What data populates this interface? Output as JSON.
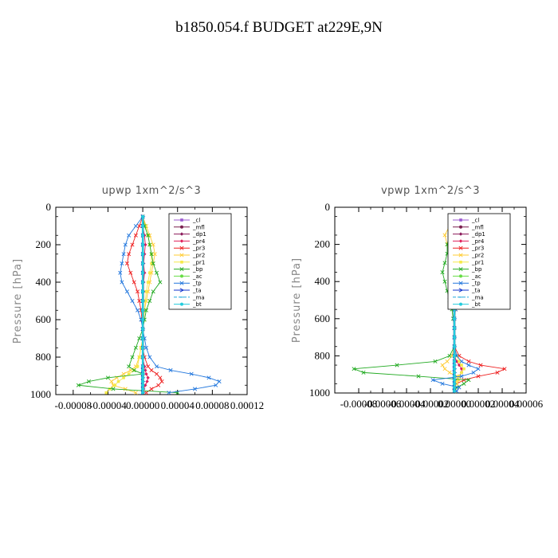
{
  "figure_title": "b1850.054.f  BUDGET at229E,9N",
  "chart_data": [
    {
      "type": "line",
      "title": "upwp   1xm^2/s^3",
      "ylabel": "Pressure [hPa]",
      "xlabel": "",
      "xlim": [
        -0.0001,
        0.00012
      ],
      "ylim": [
        1000,
        0
      ],
      "xtick_labels": [
        "-0.00008",
        "-0.00004",
        "0.00000",
        "0.00004",
        "0.00008",
        "0.00012"
      ],
      "xtick_values": [
        -8e-05,
        -4e-05,
        0,
        4e-05,
        8e-05,
        0.00012
      ],
      "ytick_labels": [
        "0",
        "200",
        "400",
        "600",
        "800",
        "1000"
      ],
      "ytick_values": [
        0,
        200,
        400,
        600,
        800,
        1000
      ],
      "legend_position": "top-right",
      "pressure": [
        50,
        100,
        150,
        200,
        250,
        300,
        350,
        400,
        450,
        500,
        550,
        600,
        650,
        700,
        750,
        800,
        850,
        870,
        890,
        910,
        930,
        950,
        970,
        990
      ],
      "series": [
        {
          "name": "_cl",
          "color": "#9b59d0",
          "marker": "square",
          "values": [
            0,
            0,
            0,
            0,
            0,
            0,
            0,
            0,
            0,
            0,
            0,
            0,
            0,
            0,
            0,
            0,
            0,
            0,
            0,
            0,
            0,
            0,
            0,
            0
          ]
        },
        {
          "name": "_mfl",
          "color": "#7a1f4f",
          "marker": "dot",
          "values": [
            0,
            0,
            0,
            0,
            0,
            0,
            0,
            0,
            0,
            0,
            0,
            0,
            0,
            0,
            0,
            0,
            0,
            0,
            0,
            0,
            0,
            0,
            0,
            0
          ]
        },
        {
          "name": "_dp1",
          "color": "#8b1a5a",
          "marker": "diamond",
          "values": [
            0,
            0,
            0,
            0,
            0,
            0,
            0,
            0,
            0,
            0,
            0,
            0,
            0,
            0,
            0,
            0,
            0,
            0,
            0,
            0,
            0,
            0,
            0,
            0
          ]
        },
        {
          "name": "_pr4",
          "color": "#e0205a",
          "marker": "diamond",
          "values": [
            0,
            0,
            2e-06,
            3e-06,
            2e-06,
            1e-06,
            2e-06,
            1e-06,
            1e-06,
            1e-06,
            0,
            0,
            0,
            0,
            0,
            0,
            2e-06,
            3e-06,
            4e-06,
            6e-06,
            5e-06,
            3e-06,
            1e-06,
            0
          ]
        },
        {
          "name": "_pr3",
          "color": "#ee2020",
          "marker": "x",
          "values": [
            0,
            -4e-06,
            -8e-06,
            -1.2e-05,
            -1.6e-05,
            -1.8e-05,
            -1.4e-05,
            -1e-05,
            -6e-06,
            -4e-06,
            -2e-06,
            -1e-06,
            0,
            0,
            0,
            2e-06,
            6e-06,
            1e-05,
            1.6e-05,
            2e-05,
            2.2e-05,
            1.8e-05,
            1e-05,
            4e-06
          ]
        },
        {
          "name": "_pr2",
          "color": "#ffcc33",
          "marker": "x",
          "values": [
            0,
            4e-06,
            8e-06,
            1.2e-05,
            1.4e-05,
            1.2e-05,
            1e-05,
            8e-06,
            6e-06,
            4e-06,
            2e-06,
            1e-06,
            0,
            0,
            -2e-06,
            -4e-06,
            -8e-06,
            -1.4e-05,
            -2.2e-05,
            -3e-05,
            -3.6e-05,
            -3.4e-05,
            -2e-05,
            -8e-06
          ]
        },
        {
          "name": "_pr1",
          "color": "#f5e94a",
          "marker": "square",
          "values": [
            0,
            3e-06,
            6e-06,
            8e-06,
            1e-05,
            1e-05,
            8e-06,
            6e-06,
            4e-06,
            3e-06,
            2e-06,
            1e-06,
            0,
            0,
            -2e-06,
            -4e-06,
            -6e-06,
            -1e-05,
            -1.6e-05,
            -2.2e-05,
            -2.8e-05,
            -3.2e-05,
            -3.8e-05,
            -4.2e-05
          ]
        },
        {
          "name": "_bp",
          "color": "#22aa22",
          "marker": "x",
          "values": [
            0,
            2e-06,
            6e-06,
            8e-06,
            1e-05,
            1.2e-05,
            1.6e-05,
            2e-05,
            1.2e-05,
            8e-06,
            4e-06,
            2e-06,
            0,
            -4e-06,
            -8e-06,
            -1.2e-05,
            -1.6e-05,
            -1e-05,
            0,
            -4e-05,
            -6.2e-05,
            -7.4e-05,
            -3.4e-05,
            4e-05
          ]
        },
        {
          "name": "_ac",
          "color": "#66dd44",
          "marker": "dot",
          "values": [
            0,
            0,
            0,
            0,
            0,
            0,
            0,
            0,
            0,
            0,
            0,
            0,
            0,
            0,
            0,
            0,
            0,
            0,
            0,
            0,
            0,
            0,
            0,
            0
          ]
        },
        {
          "name": "_tp",
          "color": "#2277dd",
          "marker": "x",
          "values": [
            0,
            -8e-06,
            -1.6e-05,
            -2e-05,
            -2.2e-05,
            -2.4e-05,
            -2.6e-05,
            -2.4e-05,
            -1.8e-05,
            -1.2e-05,
            -6e-06,
            -2e-06,
            0,
            2e-06,
            4e-06,
            8e-06,
            1.6e-05,
            3.2e-05,
            5.6e-05,
            7.6e-05,
            8.8e-05,
            8.4e-05,
            6e-05,
            3e-05
          ]
        },
        {
          "name": "_ta",
          "color": "#1133cc",
          "marker": "arrow",
          "values": [
            0,
            0,
            0,
            0,
            0,
            0,
            0,
            0,
            0,
            0,
            0,
            0,
            0,
            0,
            0,
            0,
            0,
            0,
            0,
            0,
            0,
            0,
            0,
            0
          ]
        },
        {
          "name": "_ma",
          "color": "#22aadd",
          "marker": "dash",
          "values": [
            0,
            0,
            0,
            0,
            0,
            0,
            0,
            0,
            0,
            0,
            0,
            0,
            0,
            0,
            0,
            0,
            0,
            0,
            0,
            0,
            0,
            0,
            0,
            0
          ]
        },
        {
          "name": "_bt",
          "color": "#22ccdd",
          "marker": "dot",
          "values": [
            0,
            0,
            0,
            0,
            0,
            0,
            0,
            0,
            0,
            0,
            0,
            0,
            0,
            0,
            0,
            0,
            0,
            0,
            0,
            0,
            0,
            0,
            0,
            0
          ]
        }
      ]
    },
    {
      "type": "line",
      "title": "vpwp   1xm^2/s^3",
      "ylabel": "Pressure [hPa]",
      "xlabel": "",
      "xlim": [
        -0.0001,
        6e-05
      ],
      "ylim": [
        1000,
        0
      ],
      "xtick_labels": [
        "-0.00008",
        "-0.00006",
        "-0.00004",
        "-0.00002",
        "0.00000",
        "0.00002",
        "0.00004",
        "0.00006"
      ],
      "xtick_values": [
        -8e-05,
        -6e-05,
        -4e-05,
        -2e-05,
        0,
        2e-05,
        4e-05,
        6e-05
      ],
      "ytick_labels": [
        "0",
        "200",
        "400",
        "600",
        "800",
        "1000"
      ],
      "ytick_values": [
        0,
        200,
        400,
        600,
        800,
        1000
      ],
      "legend_position": "top-right",
      "pressure": [
        50,
        100,
        150,
        200,
        250,
        300,
        350,
        400,
        450,
        500,
        550,
        600,
        650,
        700,
        750,
        800,
        830,
        850,
        870,
        890,
        910,
        930,
        950,
        970,
        990
      ],
      "series": [
        {
          "name": "_cl",
          "color": "#9b59d0",
          "marker": "square",
          "values": [
            0,
            0,
            0,
            0,
            0,
            0,
            0,
            0,
            0,
            0,
            0,
            0,
            0,
            0,
            0,
            0,
            0,
            0,
            0,
            0,
            0,
            0,
            0,
            0,
            0
          ]
        },
        {
          "name": "_mfl",
          "color": "#7a1f4f",
          "marker": "dot",
          "values": [
            0,
            0,
            0,
            0,
            0,
            0,
            0,
            0,
            0,
            0,
            0,
            0,
            0,
            0,
            0,
            0,
            0,
            0,
            0,
            0,
            0,
            0,
            0,
            0,
            0
          ]
        },
        {
          "name": "_dp1",
          "color": "#8b1a5a",
          "marker": "diamond",
          "values": [
            0,
            0,
            0,
            0,
            0,
            0,
            0,
            0,
            0,
            0,
            0,
            0,
            0,
            0,
            0,
            0,
            0,
            0,
            0,
            0,
            0,
            0,
            0,
            0,
            0
          ]
        },
        {
          "name": "_pr4",
          "color": "#e0205a",
          "marker": "diamond",
          "values": [
            0,
            0,
            0,
            1e-06,
            2e-06,
            2e-06,
            1e-06,
            1e-06,
            0,
            0,
            0,
            0,
            0,
            0,
            0,
            0,
            2e-06,
            4e-06,
            6e-06,
            6e-06,
            4e-06,
            2e-06,
            1e-06,
            0,
            0
          ]
        },
        {
          "name": "_pr3",
          "color": "#ee2020",
          "marker": "x",
          "values": [
            0,
            0,
            2e-06,
            4e-06,
            6e-06,
            8e-06,
            1e-05,
            8e-06,
            4e-06,
            2e-06,
            1e-06,
            0,
            0,
            0,
            0,
            4e-06,
            1.2e-05,
            2.2e-05,
            4.2e-05,
            3.6e-05,
            2e-05,
            8e-06,
            2e-06,
            0,
            0
          ]
        },
        {
          "name": "_pr2",
          "color": "#ffcc33",
          "marker": "x",
          "values": [
            0,
            -4e-06,
            -8e-06,
            -6e-06,
            -4e-06,
            -2e-06,
            -2e-06,
            -1e-06,
            0,
            0,
            0,
            0,
            0,
            0,
            0,
            -2e-06,
            -6e-06,
            -1e-05,
            -8e-06,
            -4e-06,
            2e-06,
            4e-06,
            2e-06,
            0,
            0
          ]
        },
        {
          "name": "_pr1",
          "color": "#f5e94a",
          "marker": "square",
          "values": [
            0,
            -2e-06,
            -4e-06,
            -4e-06,
            -4e-06,
            -2e-06,
            -2e-06,
            -1e-06,
            0,
            0,
            0,
            0,
            0,
            0,
            0,
            2e-06,
            4e-06,
            6e-06,
            8e-06,
            6e-06,
            4e-06,
            2e-06,
            1e-06,
            0,
            0
          ]
        },
        {
          "name": "_bp",
          "color": "#22aa22",
          "marker": "x",
          "values": [
            0,
            -2e-06,
            -4e-06,
            -6e-06,
            -6e-06,
            -8e-06,
            -1e-05,
            -8e-06,
            -6e-06,
            -4e-06,
            -2e-06,
            -1e-06,
            0,
            0,
            0,
            -4e-06,
            -1.6e-05,
            -4.8e-05,
            -8.4e-05,
            -7.6e-05,
            -3e-05,
            1.2e-05,
            8e-06,
            2e-06,
            0
          ]
        },
        {
          "name": "_ac",
          "color": "#66dd44",
          "marker": "dot",
          "values": [
            0,
            0,
            0,
            0,
            0,
            0,
            0,
            0,
            0,
            0,
            0,
            0,
            0,
            0,
            0,
            0,
            0,
            0,
            0,
            0,
            0,
            0,
            0,
            0,
            0
          ]
        },
        {
          "name": "_tp",
          "color": "#2277dd",
          "marker": "x",
          "values": [
            0,
            4e-06,
            8e-06,
            1e-05,
            8e-06,
            6e-06,
            8e-06,
            6e-06,
            4e-06,
            2e-06,
            1e-06,
            0,
            0,
            0,
            0,
            2e-06,
            6e-06,
            1.2e-05,
            2e-05,
            1.6e-05,
            6e-06,
            -1.8e-05,
            -1e-05,
            4e-06,
            2e-06
          ]
        },
        {
          "name": "_ta",
          "color": "#1133cc",
          "marker": "arrow",
          "values": [
            0,
            0,
            0,
            0,
            0,
            0,
            0,
            0,
            0,
            0,
            0,
            0,
            0,
            0,
            0,
            0,
            0,
            0,
            0,
            0,
            0,
            0,
            0,
            0,
            0
          ]
        },
        {
          "name": "_ma",
          "color": "#22aadd",
          "marker": "dash",
          "values": [
            0,
            0,
            0,
            0,
            0,
            0,
            0,
            0,
            0,
            0,
            0,
            0,
            0,
            0,
            0,
            0,
            0,
            0,
            0,
            0,
            0,
            0,
            0,
            0,
            0
          ]
        },
        {
          "name": "_bt",
          "color": "#22ccdd",
          "marker": "dot",
          "values": [
            0,
            0,
            0,
            0,
            0,
            0,
            0,
            0,
            0,
            0,
            0,
            0,
            0,
            0,
            0,
            0,
            0,
            0,
            0,
            0,
            0,
            0,
            0,
            0,
            0
          ]
        }
      ]
    }
  ]
}
